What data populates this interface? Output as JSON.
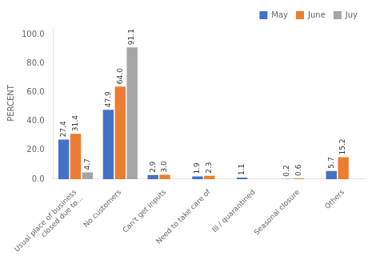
{
  "chart_data": {
    "type": "bar",
    "categories": [
      "Usual place of business\nclosed due to...",
      "No customers",
      "Can't get inputs",
      "Need to take care of",
      "Ill / quarantined",
      "Seasonal closure",
      "Others"
    ],
    "series": [
      {
        "name": "May",
        "color": "#4472c4",
        "values": [
          27.4,
          47.9,
          2.9,
          1.9,
          1.1,
          0.2,
          5.7
        ],
        "value_labels": [
          "27.4",
          "47.9",
          "2.9",
          "1.9",
          "1.1",
          "0.2",
          "5.7"
        ]
      },
      {
        "name": "June",
        "color": "#ed7d31",
        "values": [
          31.4,
          64.0,
          3.0,
          2.3,
          0.0,
          0.6,
          15.2
        ],
        "value_labels": [
          "31.4",
          "64.0",
          "3.0",
          "2.3",
          null,
          "0.6",
          "15.2"
        ]
      },
      {
        "name": "Juy",
        "color": "#a5a5a5",
        "values": [
          4.7,
          91.1,
          0.0,
          0.0,
          0.0,
          0.0,
          0.0
        ],
        "value_labels": [
          "4.7",
          "91.1",
          null,
          null,
          null,
          null,
          null
        ]
      }
    ],
    "ylabel": "PERCENT",
    "ylim": [
      0,
      105
    ],
    "yticks": [
      {
        "value": 0,
        "label": "0.0"
      },
      {
        "value": 20,
        "label": "20.0"
      },
      {
        "value": 40,
        "label": "40.0"
      },
      {
        "value": 60,
        "label": "60.0"
      },
      {
        "value": 80,
        "label": "80.0"
      },
      {
        "value": 100,
        "label": "100.0"
      }
    ],
    "grid": false,
    "legend": "upper right",
    "data_labels": true
  }
}
